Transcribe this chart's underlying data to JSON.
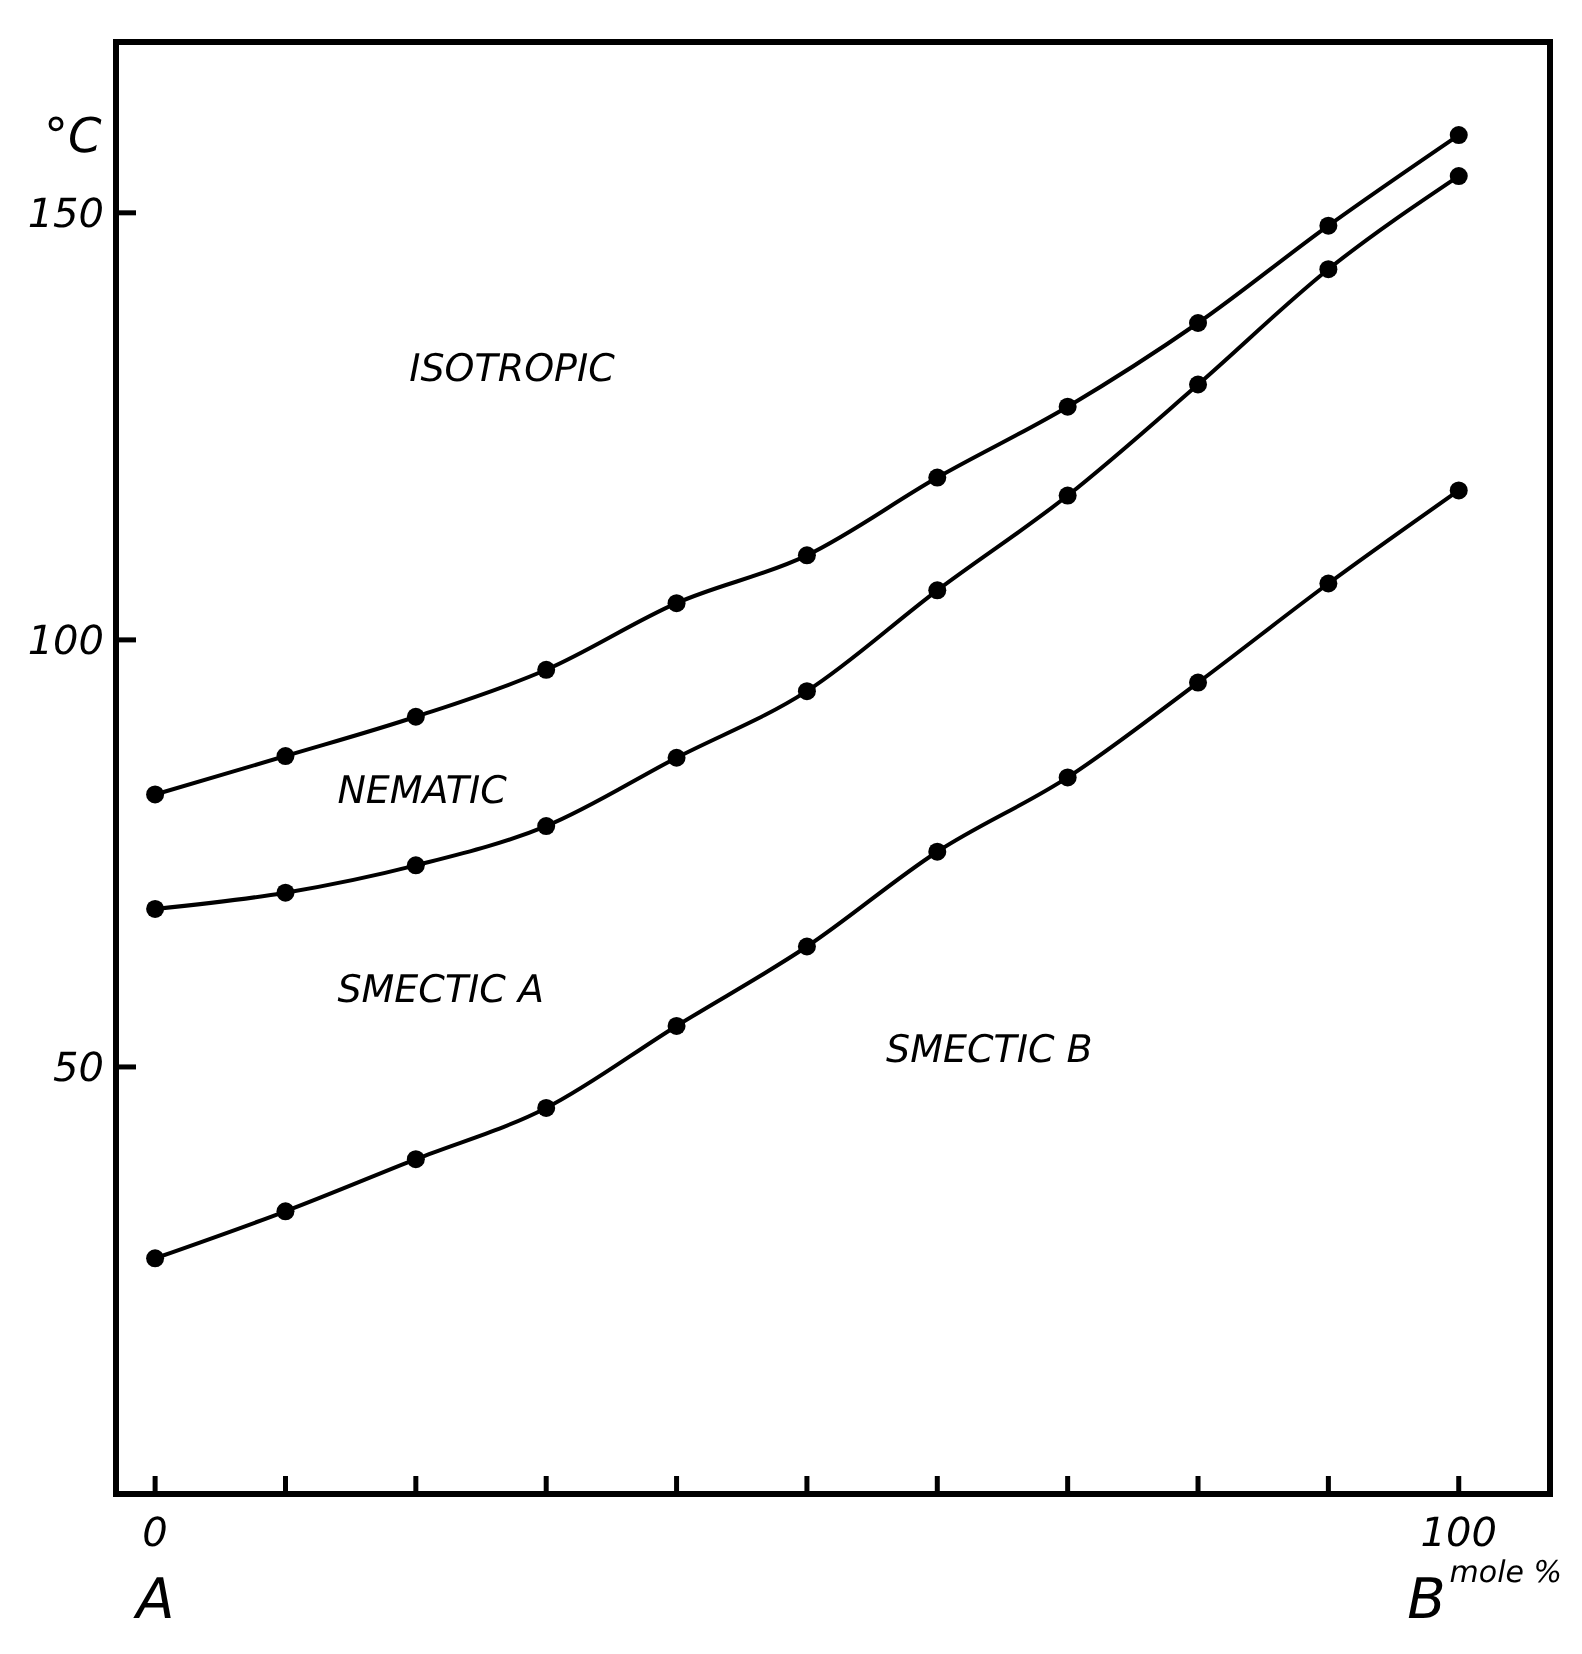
{
  "chart_data": {
    "type": "line",
    "ylabel": "°C",
    "xlabel": "mole %",
    "x": [
      0,
      10,
      20,
      30,
      40,
      50,
      60,
      70,
      80,
      90,
      100
    ],
    "series": [
      {
        "color": "#000000",
        "values": [
          81.9,
          86.4,
          91.0,
          96.5,
          104.3,
          109.9,
          119.0,
          127.3,
          137.1,
          148.5,
          159.1
        ]
      },
      {
        "color": "#000000",
        "values": [
          68.5,
          70.4,
          73.6,
          78.2,
          86.2,
          94.0,
          105.8,
          116.9,
          129.9,
          143.4,
          154.3
        ]
      },
      {
        "color": "#000000",
        "values": [
          27.6,
          33.1,
          39.2,
          45.2,
          54.8,
          64.1,
          75.2,
          83.9,
          95.0,
          106.6,
          117.5
        ]
      }
    ],
    "xlim": [
      -3,
      107
    ],
    "ylim": [
      0,
      170
    ],
    "xticks": [
      0,
      {
        "value": 10,
        "label": null
      },
      {
        "value": 20,
        "label": null
      },
      {
        "value": 30,
        "label": null
      },
      {
        "value": 40,
        "label": null
      },
      {
        "value": 50,
        "label": null
      },
      {
        "value": 60,
        "label": null
      },
      {
        "value": 70,
        "label": null
      },
      {
        "value": 80,
        "label": null
      },
      {
        "value": 90,
        "label": null
      },
      100
    ],
    "yticks": [
      50,
      100,
      150
    ],
    "marker": "circle",
    "line_style": "solid",
    "grid": false,
    "annotations": [
      "ISOTROPIC",
      "NEMATIC",
      "SMECTIC A",
      "SMECTIC B",
      "A",
      "B"
    ]
  }
}
